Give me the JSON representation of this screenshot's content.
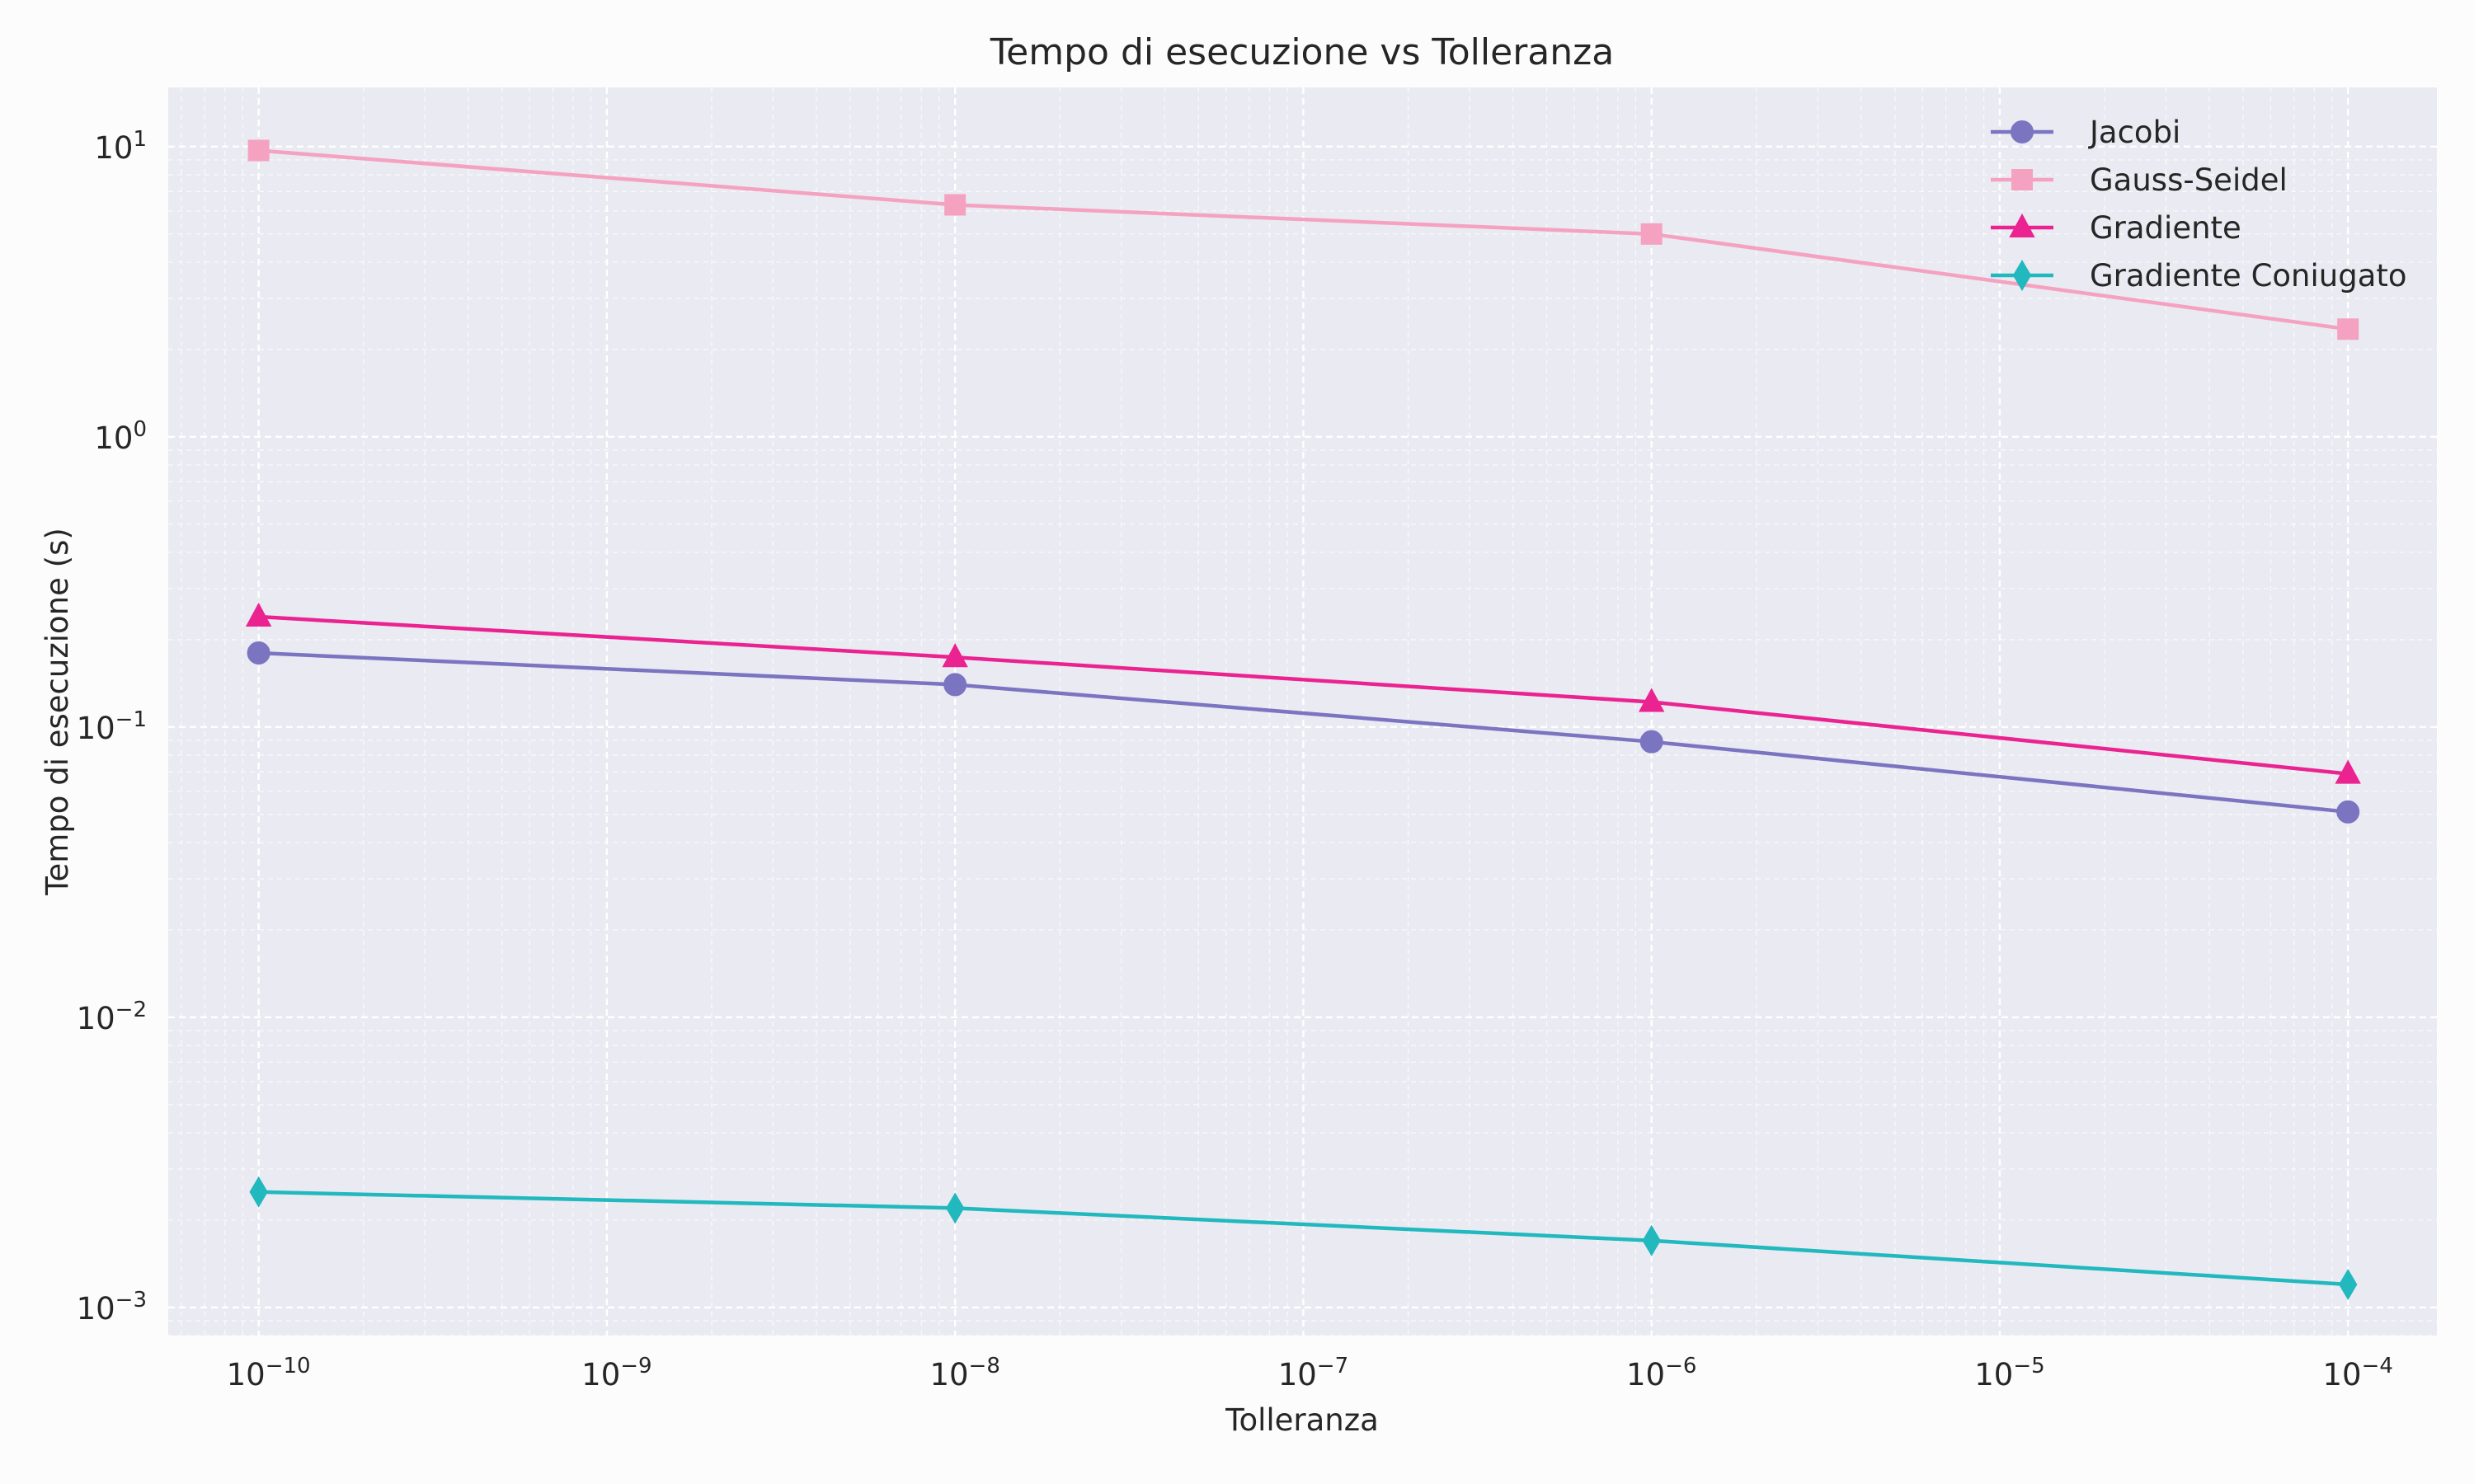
{
  "chart_data": {
    "type": "line",
    "title": "Tempo di esecuzione vs Tolleranza",
    "xlabel": "Tolleranza",
    "ylabel": "Tempo di esecuzione (s)",
    "xscale": "log",
    "yscale": "log",
    "xlim": [
      5.5e-11,
      0.00018
    ],
    "ylim": [
      0.0008,
      16
    ],
    "x": [
      1e-10,
      1e-08,
      1e-06,
      0.0001
    ],
    "x_ticks": [
      {
        "value": 1e-10,
        "base": "10",
        "exp": "−10"
      },
      {
        "value": 1e-09,
        "base": "10",
        "exp": "−9"
      },
      {
        "value": 1e-08,
        "base": "10",
        "exp": "−8"
      },
      {
        "value": 1e-07,
        "base": "10",
        "exp": "−7"
      },
      {
        "value": 1e-06,
        "base": "10",
        "exp": "−6"
      },
      {
        "value": 1e-05,
        "base": "10",
        "exp": "−5"
      },
      {
        "value": 0.0001,
        "base": "10",
        "exp": "−4"
      }
    ],
    "y_ticks": [
      {
        "value": 10,
        "base": "10",
        "exp": "1"
      },
      {
        "value": 1,
        "base": "10",
        "exp": "0"
      },
      {
        "value": 0.1,
        "base": "10",
        "exp": "−1"
      },
      {
        "value": 0.01,
        "base": "10",
        "exp": "−2"
      },
      {
        "value": 0.001,
        "base": "10",
        "exp": "−3"
      }
    ],
    "grid": true,
    "legend_position": "top-right",
    "series": [
      {
        "name": "Jacobi",
        "values": [
          0.18,
          0.14,
          0.089,
          0.051
        ],
        "color": "#7b74c1",
        "marker": "circle"
      },
      {
        "name": "Gauss-Seidel",
        "values": [
          9.7,
          6.3,
          5.0,
          2.35
        ],
        "color": "#f4a2c0",
        "marker": "square"
      },
      {
        "name": "Gradiente",
        "values": [
          0.24,
          0.174,
          0.122,
          0.069
        ],
        "color": "#ea2390",
        "marker": "triangle"
      },
      {
        "name": "Gradiente Coniugato",
        "values": [
          0.0025,
          0.0022,
          0.0017,
          0.0012
        ],
        "color": "#21b8be",
        "marker": "diamond"
      }
    ]
  }
}
